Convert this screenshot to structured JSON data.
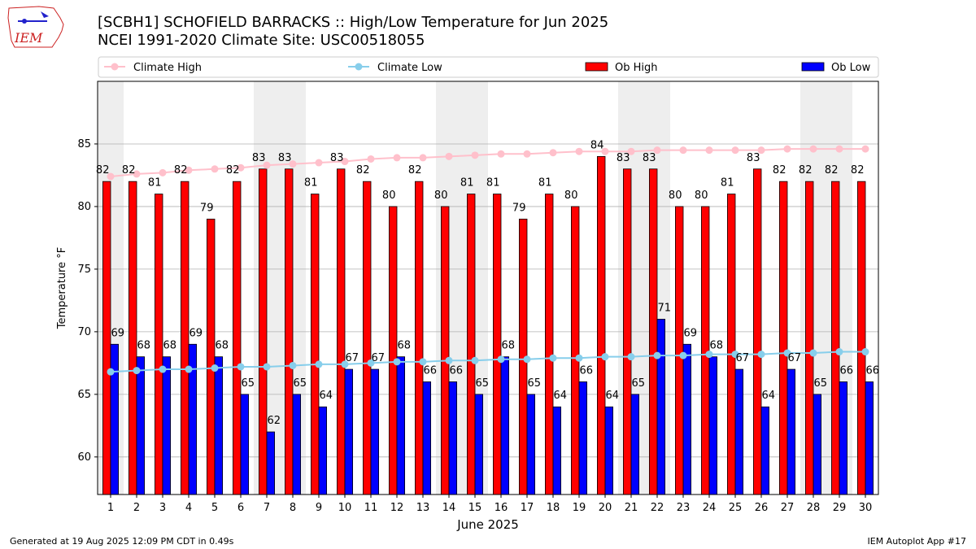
{
  "logo": {
    "text": "IEM"
  },
  "title_line1": "[SCBH1] SCHOFIELD BARRACKS :: High/Low Temperature for Jun 2025",
  "title_line2": "NCEI 1991-2020 Climate Site: USC00518055",
  "footer_left": "Generated at 19 Aug 2025 12:09 PM CDT in 0.49s",
  "footer_right": "IEM Autoplot App #17",
  "colors": {
    "ob_high": "#ff0000",
    "ob_low": "#0000ff",
    "climate_high": "#ffc0cb",
    "climate_low": "#87ceeb",
    "weekend_shade": "#eeeeee",
    "grid": "#b0b0b0"
  },
  "chart_data": {
    "type": "bar",
    "xlabel": "June 2025",
    "ylabel": "Temperature °F",
    "ylim": [
      57,
      90
    ],
    "yticks": [
      60,
      65,
      70,
      75,
      80,
      85
    ],
    "grid": "horizontal",
    "legend_position": "top",
    "categories": [
      1,
      2,
      3,
      4,
      5,
      6,
      7,
      8,
      9,
      10,
      11,
      12,
      13,
      14,
      15,
      16,
      17,
      18,
      19,
      20,
      21,
      22,
      23,
      24,
      25,
      26,
      27,
      28,
      29,
      30
    ],
    "weekend_bands": [
      [
        1,
        1
      ],
      [
        7,
        8
      ],
      [
        14,
        15
      ],
      [
        21,
        22
      ],
      [
        28,
        29
      ]
    ],
    "series": [
      {
        "name": "Ob High",
        "kind": "bar",
        "values": [
          82,
          82,
          81,
          82,
          79,
          82,
          83,
          83,
          81,
          83,
          82,
          80,
          82,
          80,
          81,
          81,
          79,
          81,
          80,
          84,
          83,
          83,
          80,
          80,
          81,
          83,
          82,
          82,
          82,
          82
        ]
      },
      {
        "name": "Ob Low",
        "kind": "bar",
        "values": [
          69,
          68,
          68,
          69,
          68,
          65,
          62,
          65,
          64,
          67,
          67,
          68,
          66,
          66,
          65,
          68,
          65,
          64,
          66,
          64,
          65,
          71,
          69,
          68,
          67,
          64,
          67,
          65,
          66,
          66
        ]
      },
      {
        "name": "Climate High",
        "kind": "line",
        "values": [
          82.4,
          82.6,
          82.7,
          82.9,
          83.0,
          83.1,
          83.3,
          83.4,
          83.5,
          83.6,
          83.8,
          83.9,
          83.9,
          84.0,
          84.1,
          84.2,
          84.2,
          84.3,
          84.4,
          84.4,
          84.4,
          84.5,
          84.5,
          84.5,
          84.5,
          84.5,
          84.6,
          84.6,
          84.6,
          84.6
        ]
      },
      {
        "name": "Climate Low",
        "kind": "line",
        "values": [
          66.8,
          66.9,
          67.0,
          67.0,
          67.1,
          67.2,
          67.2,
          67.3,
          67.4,
          67.4,
          67.5,
          67.6,
          67.6,
          67.7,
          67.7,
          67.8,
          67.8,
          67.9,
          67.9,
          68.0,
          68.0,
          68.1,
          68.1,
          68.2,
          68.2,
          68.2,
          68.3,
          68.3,
          68.4,
          68.4
        ]
      }
    ],
    "legend": [
      "Climate High",
      "Climate Low",
      "Ob High",
      "Ob Low"
    ]
  }
}
